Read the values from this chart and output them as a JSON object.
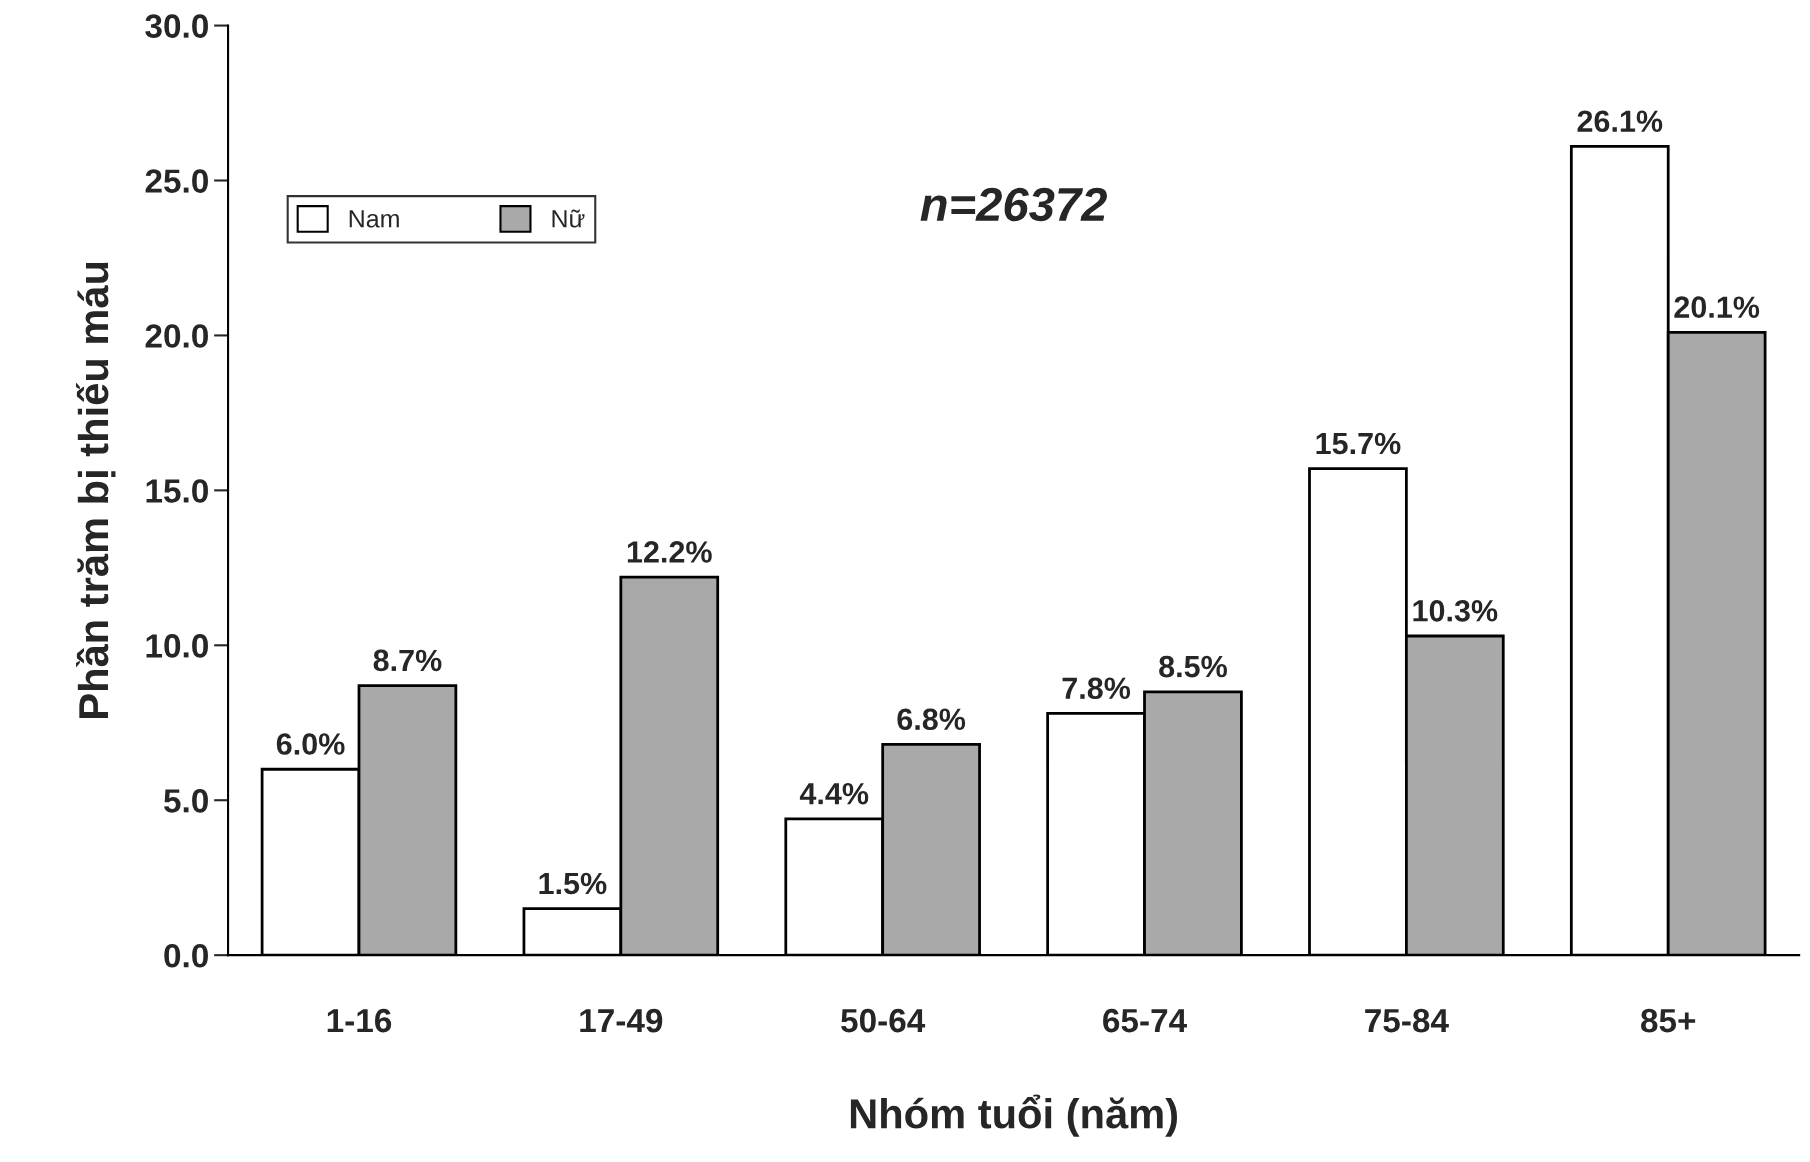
{
  "chart_data": {
    "type": "bar",
    "xlabel": "Nhóm tuổi (năm)",
    "ylabel": "Phần trăm bị thiếu máu",
    "categories": [
      "1-16",
      "17-49",
      "50-64",
      "65-74",
      "75-84",
      "85+"
    ],
    "series": [
      {
        "name": "Nam",
        "color": "#ffffff",
        "values": [
          6.0,
          1.5,
          4.4,
          7.8,
          15.7,
          26.1
        ],
        "value_labels": [
          "6.0%",
          "1.5%",
          "4.4%",
          "7.8%",
          "15.7%",
          "26.1%"
        ]
      },
      {
        "name": "Nữ",
        "color": "#a9a9a9",
        "values": [
          8.7,
          12.2,
          6.8,
          8.5,
          10.3,
          20.1
        ],
        "value_labels": [
          "8.7%",
          "12.2%",
          "6.8%",
          "8.5%",
          "10.3%",
          "20.1%"
        ]
      }
    ],
    "ylim": [
      0,
      30
    ],
    "yticks": [
      {
        "value": 0,
        "label": "0.0"
      },
      {
        "value": 5,
        "label": "5.0"
      },
      {
        "value": 10,
        "label": "10.0"
      },
      {
        "value": 15,
        "label": "15.0"
      },
      {
        "value": 20,
        "label": "20.0"
      },
      {
        "value": 25,
        "label": "25.0"
      },
      {
        "value": 30,
        "label": "30.0"
      }
    ],
    "annotations": [
      "n=26372"
    ],
    "legend": "top left",
    "grid": false
  }
}
